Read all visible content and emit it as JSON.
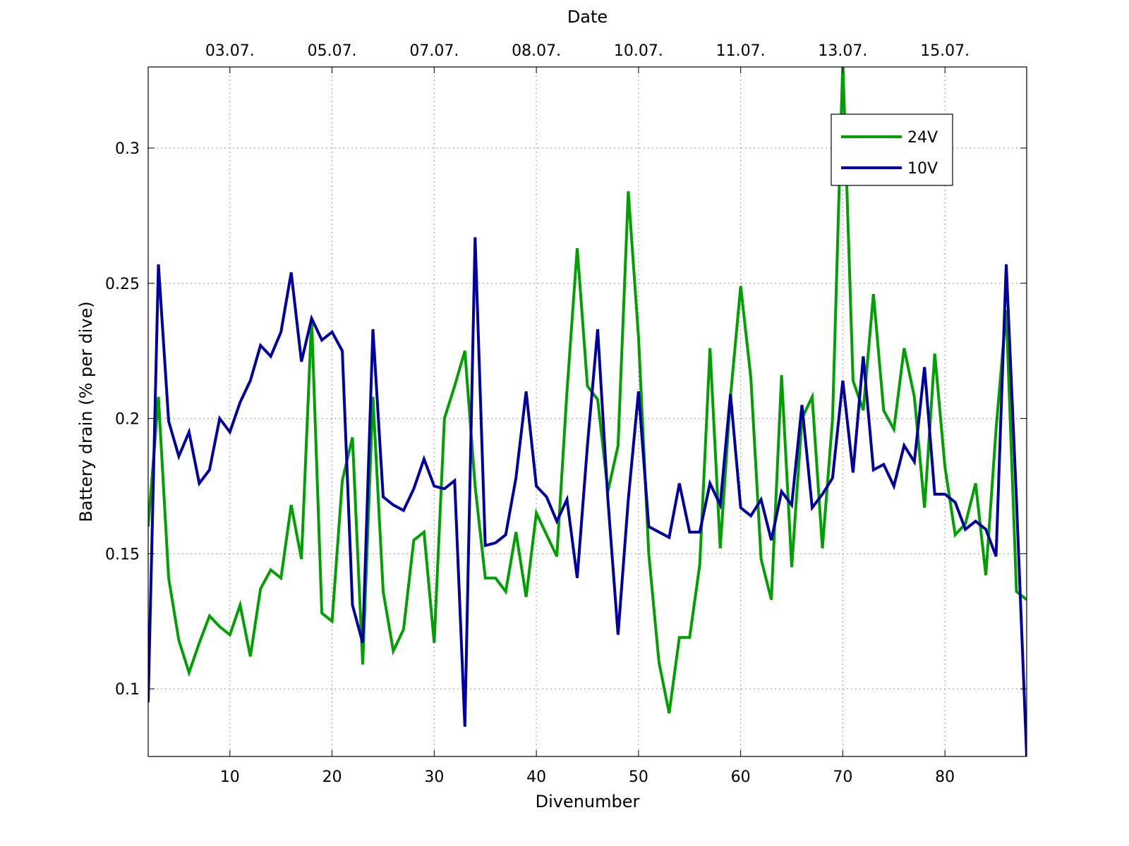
{
  "chart_data": {
    "type": "line",
    "title": "",
    "xlabel": "Divenumber",
    "ylabel": "Battery drain (% per dive)",
    "top_xlabel": "Date",
    "xlim": [
      2,
      88
    ],
    "ylim": [
      0.075,
      0.33
    ],
    "xticks": [
      10,
      20,
      30,
      40,
      50,
      60,
      70,
      80
    ],
    "yticks": [
      0.1,
      0.15,
      0.2,
      0.25,
      0.3
    ],
    "ytick_labels": [
      "0.1",
      "0.15",
      "0.2",
      "0.25",
      "0.3"
    ],
    "top_ticks": [
      {
        "x": 10,
        "label": "03.07."
      },
      {
        "x": 20,
        "label": "05.07."
      },
      {
        "x": 30,
        "label": "07.07."
      },
      {
        "x": 40,
        "label": "08.07."
      },
      {
        "x": 50,
        "label": "10.07."
      },
      {
        "x": 60,
        "label": "11.07."
      },
      {
        "x": 70,
        "label": "13.07."
      },
      {
        "x": 80,
        "label": "15.07."
      }
    ],
    "grid": true,
    "legend_position": "top-right",
    "x": [
      2,
      3,
      4,
      5,
      6,
      7,
      8,
      9,
      10,
      11,
      12,
      13,
      14,
      15,
      16,
      17,
      18,
      19,
      20,
      21,
      22,
      23,
      24,
      25,
      26,
      27,
      28,
      29,
      30,
      31,
      32,
      33,
      34,
      35,
      36,
      37,
      38,
      39,
      40,
      41,
      42,
      43,
      44,
      45,
      46,
      47,
      48,
      49,
      50,
      51,
      52,
      53,
      54,
      55,
      56,
      57,
      58,
      59,
      60,
      61,
      62,
      63,
      64,
      65,
      66,
      67,
      68,
      69,
      70,
      71,
      72,
      73,
      74,
      75,
      76,
      77,
      78,
      79,
      80,
      81,
      82,
      83,
      84,
      85,
      86,
      87,
      88
    ],
    "series": [
      {
        "name": "24V",
        "color": "#00a000",
        "values": [
          0.16,
          0.208,
          0.141,
          0.118,
          0.106,
          0.117,
          0.127,
          0.123,
          0.12,
          0.131,
          0.112,
          0.137,
          0.144,
          0.141,
          0.168,
          0.148,
          0.237,
          0.128,
          0.125,
          0.177,
          0.193,
          0.109,
          0.208,
          0.136,
          0.114,
          0.122,
          0.155,
          0.158,
          0.117,
          0.2,
          0.212,
          0.225,
          0.175,
          0.141,
          0.141,
          0.136,
          0.158,
          0.134,
          0.165,
          0.157,
          0.149,
          0.21,
          0.263,
          0.212,
          0.207,
          0.173,
          0.19,
          0.284,
          0.23,
          0.15,
          0.11,
          0.091,
          0.119,
          0.119,
          0.146,
          0.226,
          0.152,
          0.208,
          0.249,
          0.215,
          0.148,
          0.133,
          0.216,
          0.145,
          0.2,
          0.208,
          0.152,
          0.2,
          0.332,
          0.214,
          0.203,
          0.246,
          0.203,
          0.196,
          0.226,
          0.208,
          0.167,
          0.224,
          0.182,
          0.157,
          0.161,
          0.176,
          0.142,
          0.196,
          0.24,
          0.136,
          0.133
        ]
      },
      {
        "name": "10V",
        "color": "#0000a0",
        "values": [
          0.095,
          0.257,
          0.199,
          0.186,
          0.195,
          0.176,
          0.181,
          0.2,
          0.195,
          0.206,
          0.214,
          0.227,
          0.223,
          0.232,
          0.254,
          0.221,
          0.237,
          0.229,
          0.232,
          0.225,
          0.131,
          0.117,
          0.233,
          0.171,
          0.168,
          0.166,
          0.174,
          0.185,
          0.175,
          0.174,
          0.177,
          0.086,
          0.267,
          0.153,
          0.154,
          0.157,
          0.178,
          0.21,
          0.175,
          0.171,
          0.162,
          0.17,
          0.141,
          0.19,
          0.233,
          0.17,
          0.12,
          0.17,
          0.21,
          0.16,
          0.158,
          0.156,
          0.176,
          0.158,
          0.158,
          0.176,
          0.168,
          0.209,
          0.167,
          0.164,
          0.17,
          0.155,
          0.173,
          0.168,
          0.205,
          0.167,
          0.172,
          0.178,
          0.214,
          0.18,
          0.223,
          0.181,
          0.183,
          0.175,
          0.19,
          0.184,
          0.219,
          0.172,
          0.172,
          0.169,
          0.159,
          0.162,
          0.159,
          0.149,
          0.257,
          0.17,
          0.075
        ]
      }
    ]
  }
}
